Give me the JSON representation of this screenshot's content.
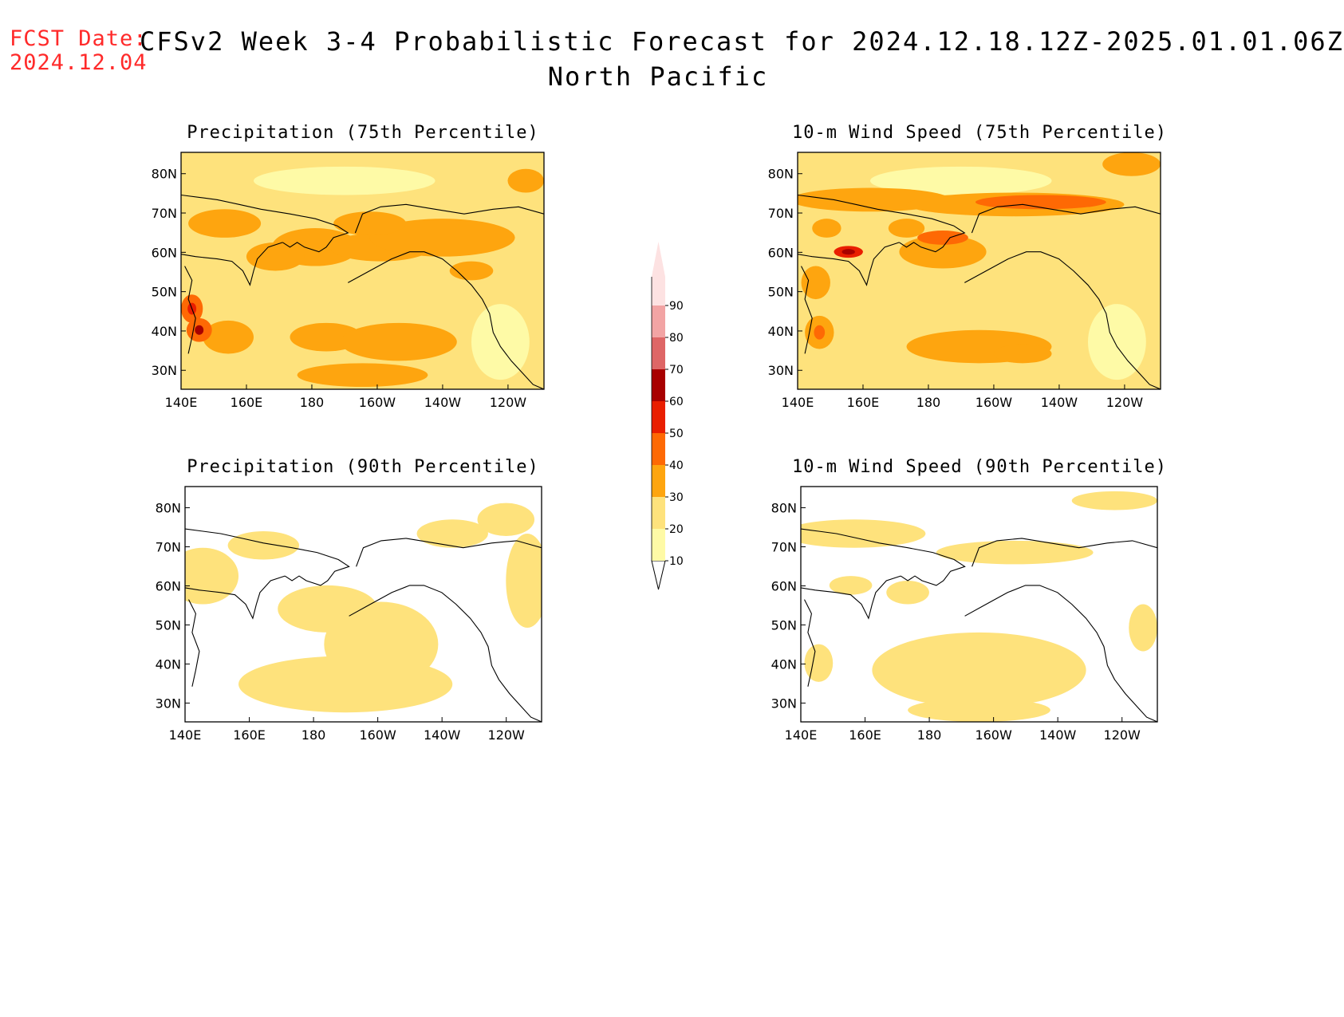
{
  "header": {
    "fcst_label": "FCST Date:",
    "fcst_date": "2024.12.04",
    "title": "CFSv2 Week 3-4 Probabilistic Forecast for 2024.12.18.12Z-2025.01.01.06Z",
    "region": "North Pacific"
  },
  "axes": {
    "lon_ticks": [
      "140E",
      "160E",
      "180",
      "160W",
      "140W",
      "120W"
    ],
    "lat_ticks": [
      "80N",
      "70N",
      "60N",
      "50N",
      "40N",
      "30N"
    ]
  },
  "panels": [
    {
      "id": "precip75",
      "title": "Precipitation (75th Percentile)",
      "level": "high"
    },
    {
      "id": "wind75",
      "title": "10-m Wind Speed (75th Percentile)",
      "level": "high"
    },
    {
      "id": "precip90",
      "title": "Precipitation (90th Percentile)",
      "level": "low"
    },
    {
      "id": "wind90",
      "title": "10-m Wind Speed (90th Percentile)",
      "level": "low"
    }
  ],
  "colorbar": {
    "labels": [
      "10",
      "20",
      "30",
      "40",
      "50",
      "60",
      "70",
      "80",
      "90"
    ],
    "colors": [
      "#fefaa6",
      "#fee27c",
      "#fea50f",
      "#fe6904",
      "#e91e00",
      "#a80000",
      "#de6666",
      "#f2a4a4",
      "#fde2e2"
    ]
  }
}
